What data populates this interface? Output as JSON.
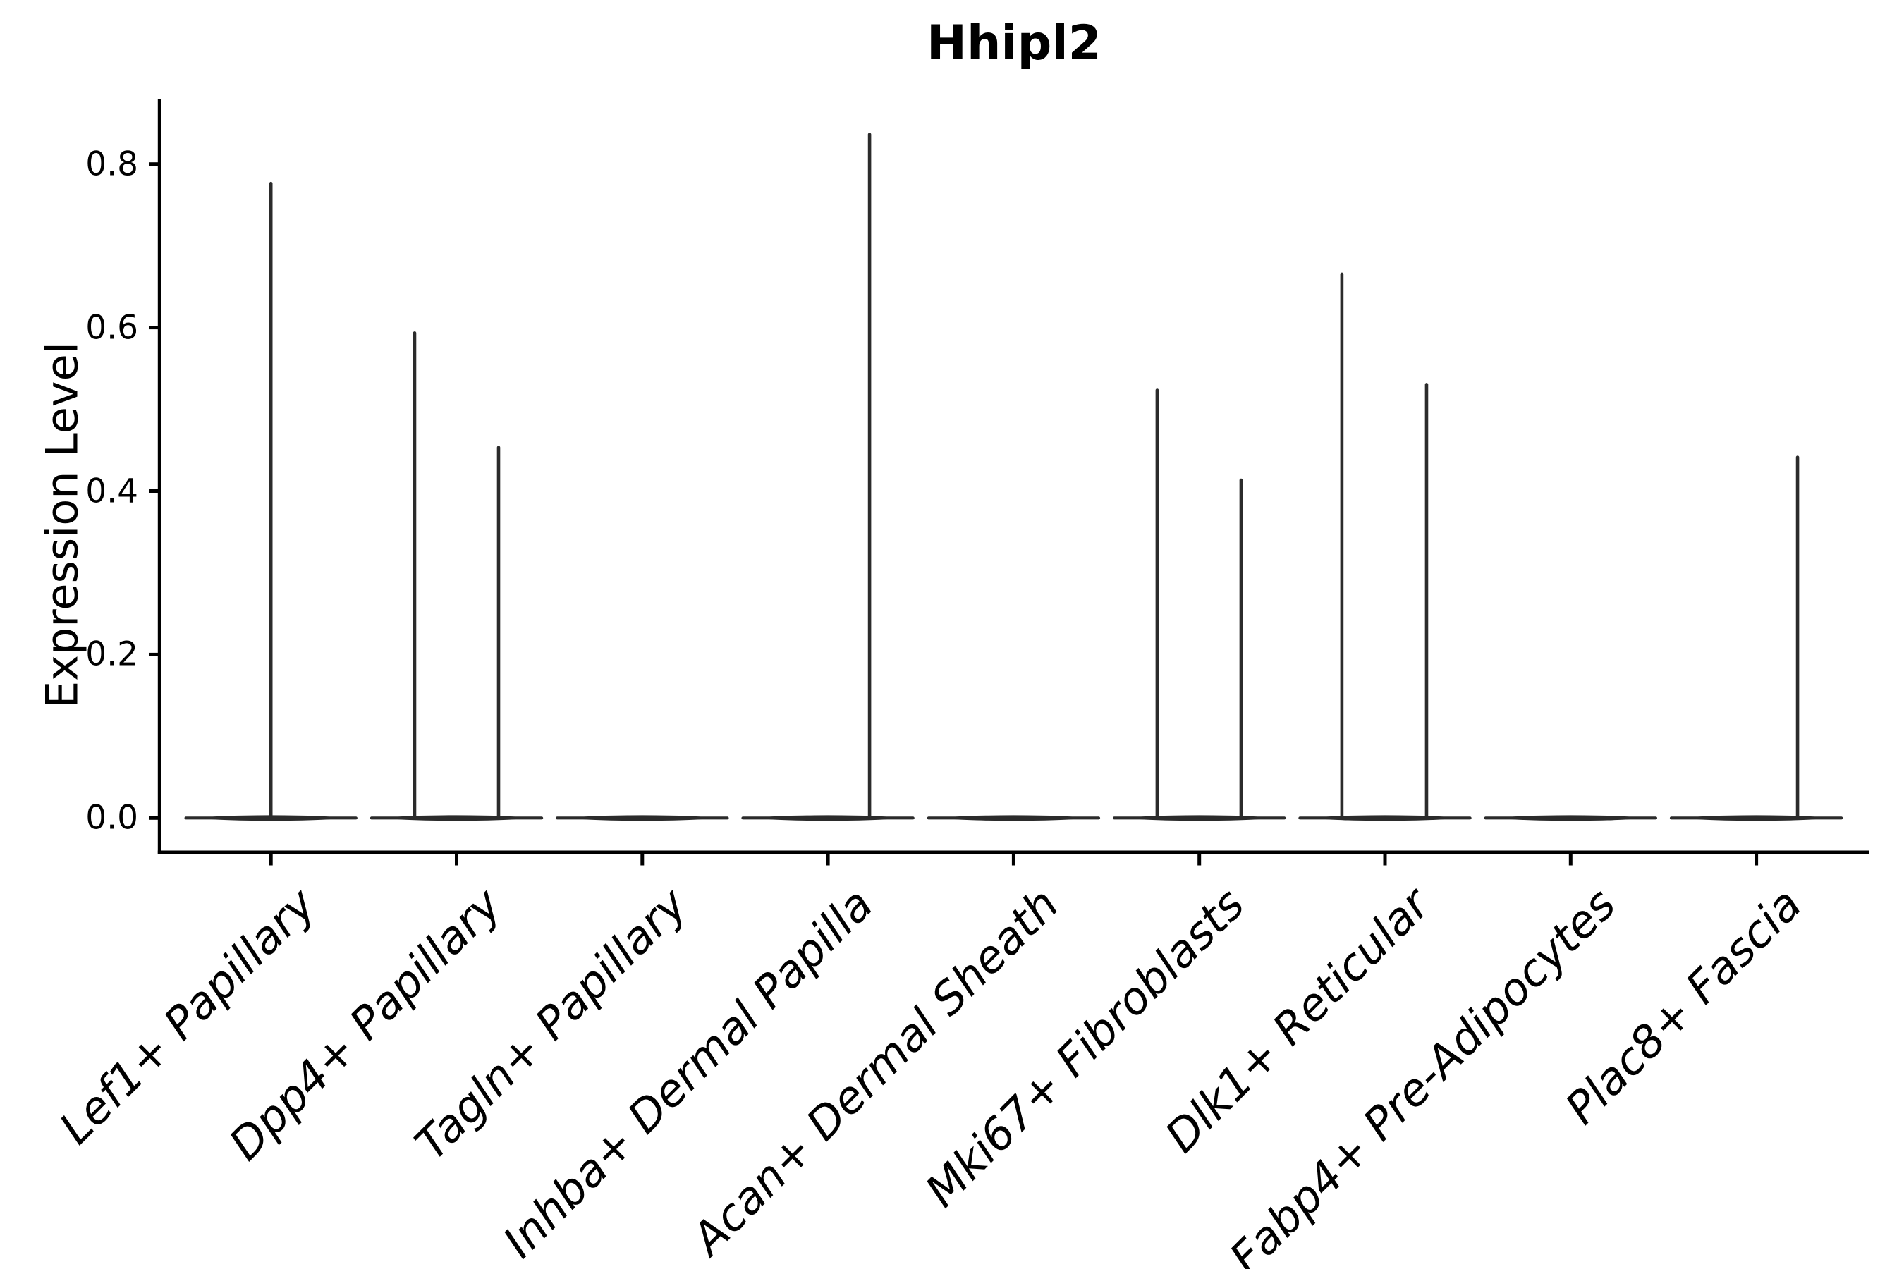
{
  "chart_data": {
    "type": "violin",
    "title": "Hhipl2",
    "ylabel": "Expression Level",
    "xlabel": "",
    "grid": false,
    "legend": null,
    "yticks": [
      0.0,
      0.2,
      0.4,
      0.6,
      0.8
    ],
    "ytick_labels": [
      "0.0",
      "0.2",
      "0.4",
      "0.6",
      "0.8"
    ],
    "ylim": [
      -0.042,
      0.88
    ],
    "categories": [
      "Lef1+ Papillary",
      "Dpp4+ Papillary",
      "Tagln+ Papillary",
      "Inhba+ Dermal Papilla",
      "Acan+ Dermal Sheath",
      "Mki67+ Fibroblasts",
      "Dlk1+ Reticular",
      "Fabp4+ Pre-Adipocytes",
      "Plac8+ Fascia"
    ],
    "violin_color": "#2b2b2b",
    "body_value": 0.0,
    "body_half_width_frac": 0.458,
    "violins": [
      {
        "category": "Lef1+ Papillary",
        "body_center_value": 0.0,
        "spikes": [
          {
            "x_offset_frac": 0.0,
            "value": 0.778
          }
        ]
      },
      {
        "category": "Dpp4+ Papillary",
        "body_center_value": 0.0,
        "spikes": [
          {
            "x_offset_frac": -0.226,
            "value": 0.595
          },
          {
            "x_offset_frac": 0.226,
            "value": 0.455
          }
        ]
      },
      {
        "category": "Tagln+ Papillary",
        "body_center_value": 0.0,
        "spikes": []
      },
      {
        "category": "Inhba+ Dermal Papilla",
        "body_center_value": 0.0,
        "spikes": [
          {
            "x_offset_frac": 0.224,
            "value": 0.838
          }
        ]
      },
      {
        "category": "Acan+ Dermal Sheath",
        "body_center_value": 0.0,
        "spikes": []
      },
      {
        "category": "Mki67+ Fibroblasts",
        "body_center_value": 0.0,
        "spikes": [
          {
            "x_offset_frac": -0.227,
            "value": 0.525
          },
          {
            "x_offset_frac": 0.225,
            "value": 0.415
          }
        ]
      },
      {
        "category": "Dlk1+ Reticular",
        "body_center_value": 0.0,
        "spikes": [
          {
            "x_offset_frac": -0.232,
            "value": 0.667
          },
          {
            "x_offset_frac": 0.224,
            "value": 0.532
          }
        ]
      },
      {
        "category": "Fabp4+ Pre-Adipocytes",
        "body_center_value": 0.0,
        "spikes": []
      },
      {
        "category": "Plac8+ Fascia",
        "body_center_value": 0.0,
        "spikes": [
          {
            "x_offset_frac": 0.222,
            "value": 0.443
          }
        ]
      }
    ]
  }
}
